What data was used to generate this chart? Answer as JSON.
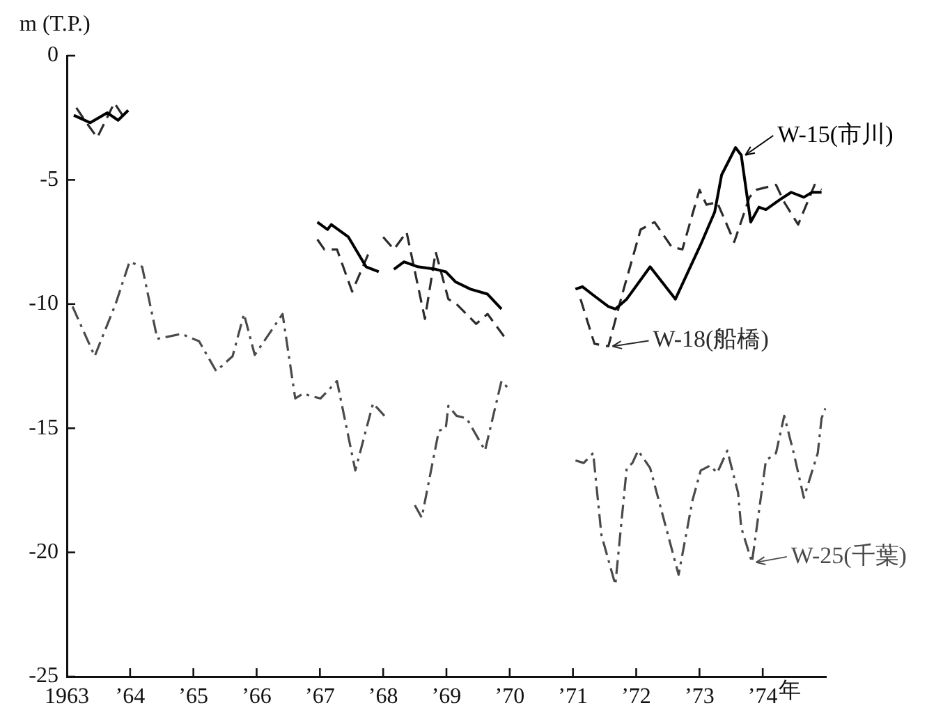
{
  "chart_data": {
    "type": "line",
    "ylabel": "m (T.P.)",
    "xlim": [
      1963,
      1975
    ],
    "ylim": [
      -25,
      0
    ],
    "xticks": [
      1963,
      {
        "value": 1964,
        "label": "’64"
      },
      {
        "value": 1965,
        "label": "’65"
      },
      {
        "value": 1966,
        "label": "’66"
      },
      {
        "value": 1967,
        "label": "’67"
      },
      {
        "value": 1968,
        "label": "’68"
      },
      {
        "value": 1969,
        "label": "’69"
      },
      {
        "value": 1970,
        "label": "’70"
      },
      {
        "value": 1971,
        "label": "’71"
      },
      {
        "value": 1972,
        "label": "’72"
      },
      {
        "value": 1973,
        "label": "’73"
      },
      {
        "value": 1974,
        "label": "’74"
      }
    ],
    "xlabel": "年",
    "yticks": [
      0,
      -5,
      -10,
      -15,
      -20,
      -25
    ],
    "grid": false,
    "legend": "right",
    "marker": "none",
    "series": [
      {
        "name": "W-15(市川)",
        "color": "#000000",
        "line_style": "solid",
        "x": [
          1963.11,
          1963.37,
          1963.64,
          1963.81,
          1963.97,
          1965.5,
          1966.96,
          1967.12,
          1967.18,
          1967.45,
          1967.73,
          1967.93,
          1968.05,
          1968.17,
          1968.33,
          1968.55,
          1968.83,
          1968.99,
          1969.14,
          1969.38,
          1969.65,
          1969.87,
          1970.5,
          1971.04,
          1971.15,
          1971.3,
          1971.56,
          1971.67,
          1971.85,
          1972.22,
          1972.62,
          1973.02,
          1973.24,
          1973.35,
          1973.57,
          1973.66,
          1973.81,
          1973.94,
          1974.05,
          1974.27,
          1974.45,
          1974.65,
          1974.78,
          1974.93
        ],
        "values": [
          -2.4,
          -2.7,
          -2.3,
          -2.6,
          -2.2,
          null,
          -6.7,
          -7.0,
          -6.8,
          -7.3,
          -8.5,
          -8.7,
          null,
          -8.6,
          -8.3,
          -8.5,
          -8.6,
          -8.7,
          -9.1,
          -9.4,
          -9.6,
          -10.2,
          null,
          -9.4,
          -9.3,
          -9.6,
          -10.1,
          -10.2,
          -9.8,
          -8.5,
          -9.8,
          -7.6,
          -6.3,
          -4.8,
          -3.7,
          -4.0,
          -6.7,
          -6.1,
          -6.2,
          -5.8,
          -5.5,
          -5.7,
          -5.5,
          -5.5
        ]
      },
      {
        "name": "W-18(船橋)",
        "color": "#2b2b2b",
        "line_style": "dashed",
        "x": [
          1963.15,
          1963.31,
          1963.48,
          1963.75,
          1963.88,
          1965.5,
          1966.96,
          1967.07,
          1967.27,
          1967.51,
          1967.78,
          1967.9,
          1968.0,
          1968.17,
          1968.37,
          1968.66,
          1968.83,
          1969.03,
          1969.16,
          1969.47,
          1969.65,
          1969.91,
          1970.5,
          1971.12,
          1971.34,
          1971.56,
          1971.78,
          1972.07,
          1972.29,
          1972.56,
          1972.73,
          1973.0,
          1973.11,
          1973.28,
          1973.55,
          1973.79,
          1973.9,
          1974.21,
          1974.34,
          1974.56,
          1974.82,
          1974.93
        ],
        "values": [
          -2.1,
          -2.7,
          -3.3,
          -1.9,
          -2.4,
          null,
          -7.4,
          -7.8,
          -7.8,
          -9.5,
          -7.9,
          null,
          -7.3,
          -7.8,
          -7.1,
          -10.6,
          -7.9,
          -9.8,
          -10.0,
          -10.8,
          -10.4,
          -11.3,
          null,
          -9.8,
          -11.6,
          -11.7,
          -9.6,
          -7.0,
          -6.7,
          -7.7,
          -7.8,
          -5.4,
          -6.0,
          -5.9,
          -7.5,
          -5.7,
          -5.4,
          -5.2,
          -5.9,
          -6.8,
          -5.2,
          -5.4
        ]
      },
      {
        "name": "W-25(千葉)",
        "color": "#4a4a4a",
        "line_style": "dashdot",
        "x": [
          1963.09,
          1963.44,
          1963.77,
          1963.99,
          1964.19,
          1964.43,
          1964.81,
          1965.09,
          1965.36,
          1965.62,
          1965.8,
          1965.97,
          1966.41,
          1966.61,
          1966.74,
          1966.85,
          1967.01,
          1967.27,
          1967.56,
          1967.84,
          1968.02,
          1968.2,
          1968.5,
          1968.61,
          1968.88,
          1968.99,
          1969.03,
          1969.16,
          1969.32,
          1969.61,
          1969.87,
          1969.98,
          1970.5,
          1971.04,
          1971.17,
          1971.32,
          1971.45,
          1971.67,
          1971.85,
          1971.94,
          1972.03,
          1972.22,
          1972.67,
          1972.89,
          1973.02,
          1973.17,
          1973.28,
          1973.44,
          1973.61,
          1973.66,
          1973.83,
          1974.05,
          1974.21,
          1974.34,
          1974.49,
          1974.65,
          1974.87,
          1974.93,
          1974.99
        ],
        "values": [
          -10.1,
          -12.1,
          -10.0,
          -8.3,
          -8.5,
          -11.4,
          -11.2,
          -11.5,
          -12.7,
          -12.1,
          -10.4,
          -12.05,
          -10.4,
          -13.8,
          -13.6,
          -13.7,
          -13.8,
          -13.1,
          -16.7,
          -14.0,
          -14.5,
          null,
          -18.1,
          -18.6,
          -15.1,
          -15.0,
          -14.1,
          -14.5,
          -14.6,
          -15.9,
          -13.1,
          -13.4,
          null,
          -16.3,
          -16.4,
          -16.0,
          -19.3,
          -21.3,
          -16.6,
          -16.4,
          -15.9,
          -16.6,
          -20.9,
          -17.9,
          -16.7,
          -16.5,
          -16.8,
          -15.9,
          -17.6,
          -19.0,
          -20.4,
          -16.3,
          -16.0,
          -14.5,
          -16.0,
          -17.8,
          -16.0,
          -14.6,
          -14.2
        ]
      }
    ]
  }
}
